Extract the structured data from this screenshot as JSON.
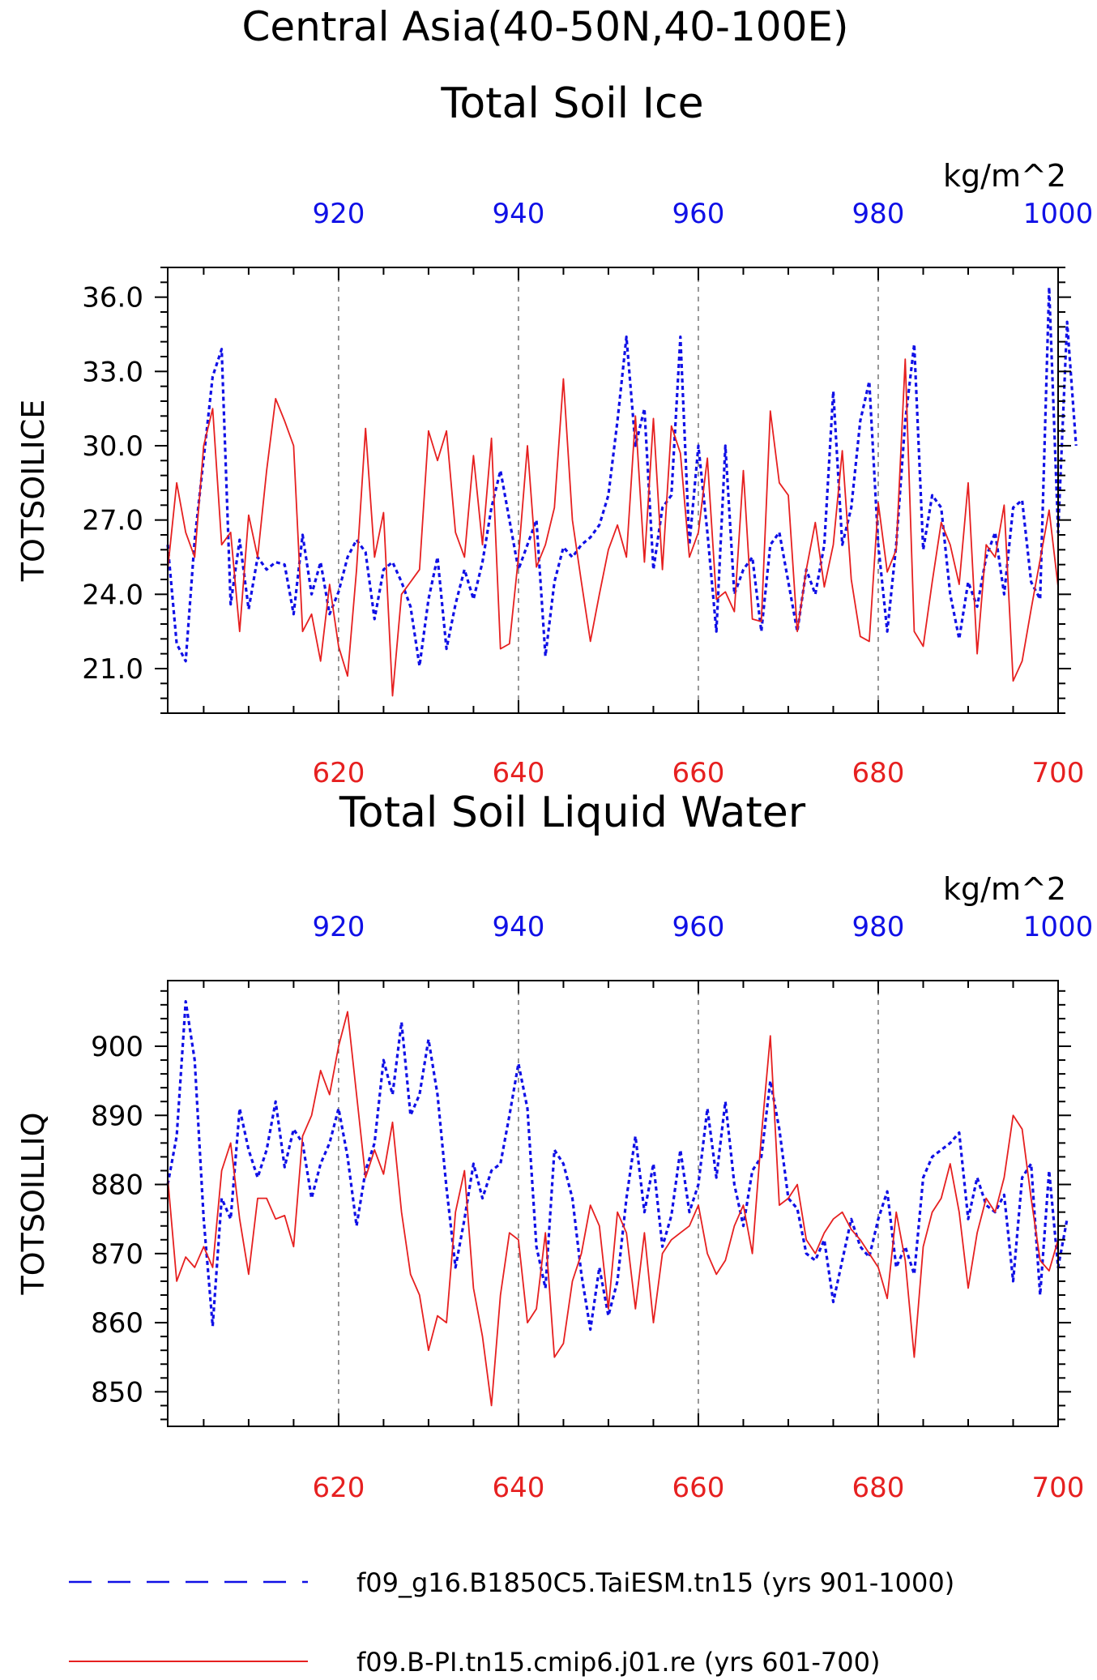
{
  "main_title": "Central Asia(40-50N,40-100E)",
  "colors": {
    "blue": "#1010e6",
    "red": "#e62020",
    "grid": "#555555"
  },
  "chart_data": [
    {
      "type": "line",
      "title": "Total Soil Ice",
      "units": "kg/m^2",
      "ylabel": "TOTSOILICE",
      "ylim": [
        19.2,
        37.2
      ],
      "yticks": [
        "21.0",
        "24.0",
        "27.0",
        "30.0",
        "33.0",
        "36.0"
      ],
      "x_bottom": {
        "range": [
          601,
          700
        ],
        "ticks": [
          620,
          640,
          660,
          680,
          700
        ]
      },
      "x_top": {
        "range": [
          901,
          1000
        ],
        "ticks": [
          920,
          940,
          960,
          980,
          1000
        ]
      },
      "grid": "vertical dashed at x ticks",
      "series": [
        {
          "name": "f09_g16.B1850C5.TaiESM.tn15 (yrs 901-1000)",
          "axis": "top",
          "style": "dashed",
          "color": "#1010e6",
          "values": [
            26.0,
            22.0,
            21.3,
            26.2,
            29.5,
            32.8,
            33.9,
            23.6,
            26.2,
            23.4,
            25.5,
            25.0,
            25.3,
            25.2,
            23.2,
            26.4,
            24.0,
            25.3,
            23.2,
            24.1,
            25.5,
            26.2,
            25.7,
            23.0,
            25.0,
            25.3,
            24.5,
            23.5,
            21.1,
            23.8,
            25.5,
            21.8,
            23.6,
            25.0,
            23.8,
            25.3,
            27.5,
            29.0,
            27.0,
            25.0,
            26.0,
            27.0,
            21.5,
            24.5,
            25.9,
            25.5,
            26.0,
            26.3,
            26.8,
            28.0,
            31.0,
            34.4,
            30.0,
            31.5,
            25.0,
            27.5,
            28.0,
            34.4,
            26.0,
            30.0,
            26.5,
            22.5,
            30.0,
            24.0,
            25.0,
            25.5,
            22.5,
            26.0,
            26.5,
            24.5,
            22.5,
            25.0,
            24.0,
            26.0,
            32.2,
            26.0,
            27.5,
            31.0,
            32.6,
            26.0,
            22.5,
            26.0,
            31.0,
            34.1,
            25.8,
            28.0,
            27.5,
            24.0,
            22.2,
            24.5,
            23.5,
            25.5,
            26.5,
            24.0,
            27.5,
            27.8,
            24.5,
            23.8,
            36.4,
            26.5,
            35.0,
            30.0
          ]
        },
        {
          "name": "f09.B-PI.tn15.cmip6.j01.re (yrs 601-700)",
          "axis": "bottom",
          "style": "solid",
          "color": "#e62020",
          "values": [
            25.0,
            28.5,
            26.5,
            25.5,
            30.0,
            31.5,
            26.0,
            26.5,
            22.5,
            27.2,
            25.5,
            29.0,
            31.9,
            31.0,
            30.0,
            22.5,
            23.2,
            21.3,
            24.4,
            21.9,
            20.7,
            25.0,
            30.7,
            25.5,
            27.3,
            19.9,
            24.0,
            24.5,
            25.0,
            30.6,
            29.4,
            30.6,
            26.5,
            25.5,
            29.6,
            26.0,
            30.3,
            21.8,
            22.0,
            25.5,
            30.0,
            25.1,
            26.0,
            27.5,
            32.7,
            27.0,
            24.5,
            22.1,
            24.0,
            25.8,
            26.8,
            25.5,
            31.2,
            25.3,
            31.1,
            25.0,
            30.8,
            29.7,
            25.5,
            26.5,
            29.5,
            23.8,
            24.1,
            23.3,
            29.0,
            23.0,
            22.9,
            31.4,
            28.5,
            28.0,
            22.5,
            25.0,
            26.9,
            24.3,
            26.0,
            29.8,
            24.6,
            22.3,
            22.1,
            27.7,
            24.9,
            25.8,
            33.5,
            22.5,
            21.9,
            24.5,
            26.9,
            26.0,
            24.4,
            28.5,
            21.6,
            26.0,
            25.5,
            27.6,
            20.5,
            21.3,
            23.4,
            25.4,
            27.4,
            24.3
          ]
        }
      ]
    },
    {
      "type": "line",
      "title": "Total Soil Liquid Water",
      "units": "kg/m^2",
      "ylabel": "TOTSOILLIQ",
      "ylim": [
        845,
        909.5
      ],
      "yticks": [
        "850",
        "860",
        "870",
        "880",
        "890",
        "900"
      ],
      "x_bottom": {
        "range": [
          601,
          700
        ],
        "ticks": [
          620,
          640,
          660,
          680,
          700
        ]
      },
      "x_top": {
        "range": [
          901,
          1000
        ],
        "ticks": [
          920,
          940,
          960,
          980,
          1000
        ]
      },
      "grid": "vertical dashed at x ticks",
      "series": [
        {
          "name": "f09_g16.B1850C5.TaiESM.tn15 (yrs 901-1000)",
          "axis": "top",
          "style": "dashed",
          "color": "#1010e6",
          "values": [
            880.0,
            887.0,
            906.5,
            898.0,
            875.0,
            859.5,
            878.0,
            875.0,
            891.0,
            885.0,
            881.0,
            885.0,
            892.0,
            882.5,
            888.0,
            886.0,
            878.0,
            883.0,
            886.0,
            891.0,
            884.0,
            874.0,
            882.0,
            886.0,
            898.0,
            893.0,
            903.5,
            890.0,
            893.0,
            901.0,
            893.0,
            879.5,
            868.0,
            875.0,
            883.0,
            878.0,
            882.0,
            883.0,
            890.0,
            897.5,
            891.0,
            871.0,
            865.0,
            885.0,
            883.0,
            878.0,
            867.0,
            859.0,
            868.0,
            861.0,
            866.0,
            878.0,
            887.0,
            876.0,
            883.0,
            871.0,
            875.5,
            885.0,
            876.0,
            880.0,
            891.0,
            881.0,
            892.0,
            880.0,
            874.0,
            882.0,
            884.0,
            895.0,
            888.0,
            878.0,
            876.5,
            870.0,
            869.0,
            872.0,
            863.0,
            869.0,
            875.0,
            871.0,
            869.5,
            875.0,
            879.0,
            868.0,
            871.0,
            867.0,
            881.0,
            884.0,
            885.0,
            886.0,
            887.5,
            875.0,
            881.0,
            877.0,
            876.0,
            878.5,
            866.0,
            881.0,
            883.0,
            864.0,
            882.0,
            868.0,
            875.0
          ]
        },
        {
          "name": "f09.B-PI.tn15.cmip6.j01.re (yrs 601-700)",
          "axis": "bottom",
          "style": "solid",
          "color": "#e62020",
          "values": [
            881.0,
            866.0,
            869.5,
            868.0,
            871.0,
            868.0,
            882.0,
            886.0,
            875.0,
            867.0,
            878.0,
            878.0,
            875.0,
            875.5,
            871.0,
            887.0,
            890.0,
            896.5,
            893.0,
            900.0,
            905.0,
            893.0,
            881.0,
            885.0,
            881.5,
            889.0,
            876.0,
            867.0,
            864.0,
            856.0,
            861.0,
            860.0,
            876.0,
            882.0,
            865.0,
            858.0,
            848.0,
            864.0,
            873.0,
            872.0,
            860.0,
            862.0,
            873.0,
            855.0,
            857.0,
            866.0,
            870.0,
            877.0,
            874.0,
            862.0,
            876.0,
            873.0,
            862.0,
            873.0,
            860.0,
            870.0,
            872.0,
            873.0,
            874.0,
            877.0,
            870.0,
            867.0,
            869.0,
            874.0,
            877.0,
            870.0,
            887.0,
            901.5,
            877.0,
            878.0,
            880.0,
            872.0,
            870.0,
            873.0,
            875.0,
            876.0,
            873.5,
            872.0,
            870.0,
            868.0,
            863.5,
            876.0,
            869.0,
            855.0,
            871.0,
            876.0,
            878.0,
            883.0,
            876.0,
            865.0,
            873.0,
            878.0,
            876.0,
            881.0,
            890.0,
            888.0,
            878.0,
            869.0,
            867.5,
            872.0
          ]
        }
      ]
    }
  ],
  "legend": [
    {
      "label": "f09_g16.B1850C5.TaiESM.tn15 (yrs 901-1000)",
      "style": "dashed",
      "color": "#1010e6"
    },
    {
      "label": "f09.B-PI.tn15.cmip6.j01.re (yrs 601-700)",
      "style": "solid",
      "color": "#e62020"
    }
  ]
}
